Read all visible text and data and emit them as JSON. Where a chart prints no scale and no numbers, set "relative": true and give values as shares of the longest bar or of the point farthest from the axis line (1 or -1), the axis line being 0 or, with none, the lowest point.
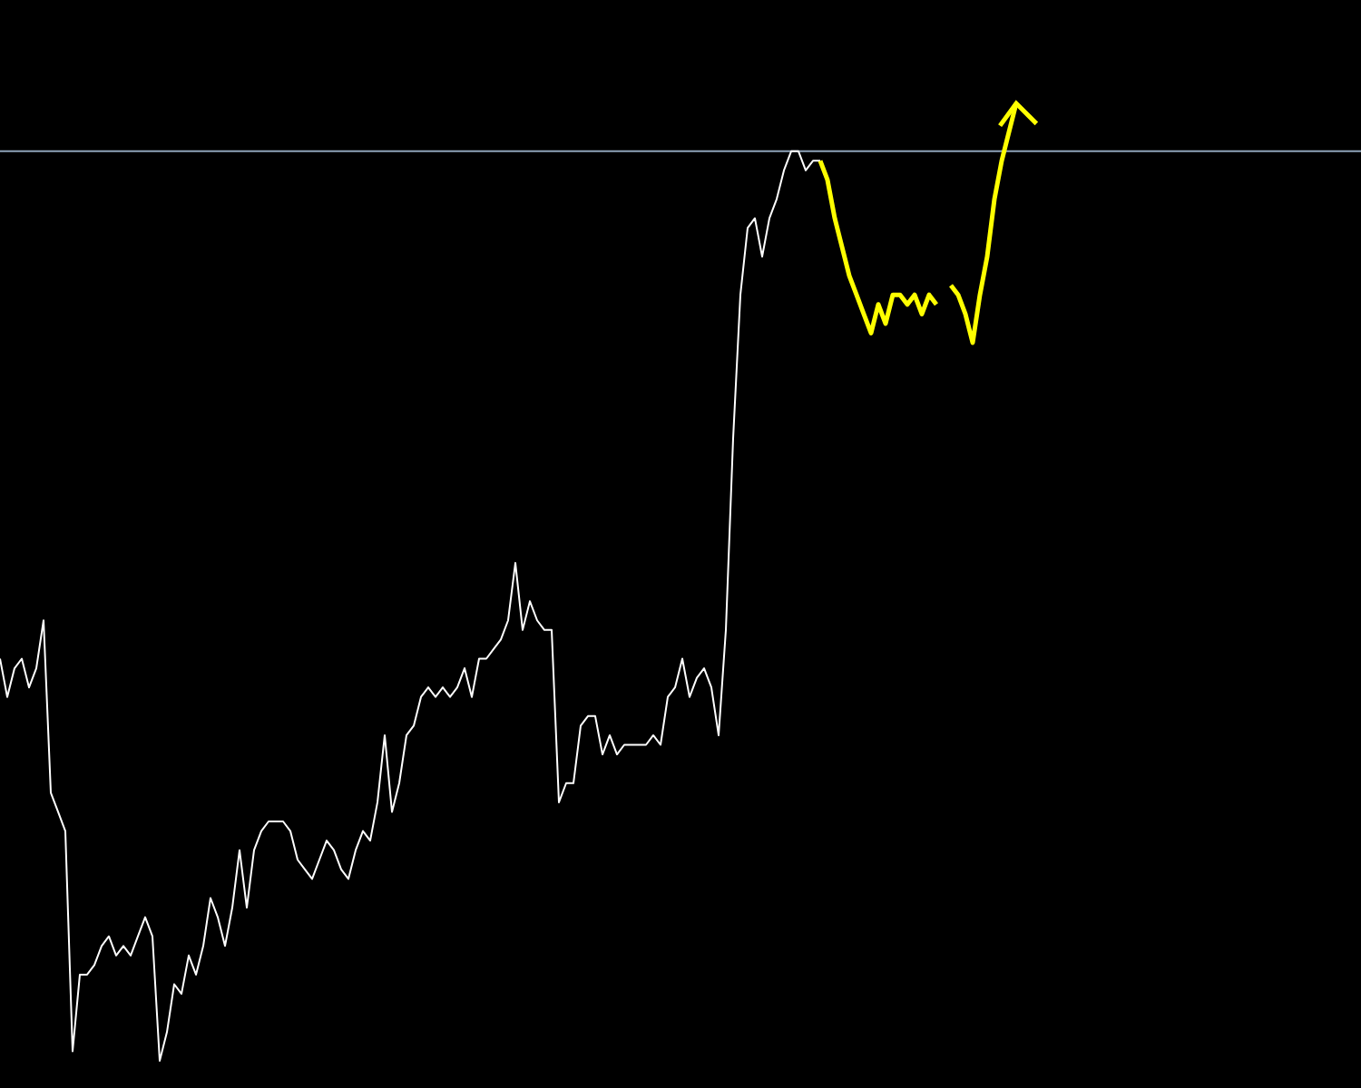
{
  "chart_data": {
    "type": "line",
    "relative": true,
    "categories": [
      null,
      null,
      null,
      null,
      null,
      null,
      null,
      null,
      null,
      null,
      null,
      null,
      null,
      null,
      null,
      null,
      null,
      null,
      null,
      null,
      null,
      null,
      null,
      null,
      null,
      null,
      null,
      null,
      null,
      null,
      null,
      null,
      null,
      null,
      null,
      null,
      null,
      null,
      null,
      null,
      null,
      null,
      null,
      null,
      null,
      null,
      null,
      null,
      null,
      null,
      null,
      null,
      null,
      null,
      null,
      null,
      null,
      null,
      null,
      null,
      null,
      null,
      null,
      null,
      null,
      null,
      null,
      null,
      null,
      null,
      null,
      null,
      null,
      null,
      null,
      null,
      null,
      null,
      null,
      null,
      null,
      null,
      null,
      null,
      null,
      null,
      null,
      null,
      null,
      null,
      null,
      null,
      null,
      null,
      null,
      null,
      null,
      null,
      null,
      null,
      null,
      null,
      null,
      null,
      null,
      null,
      null,
      null,
      null,
      null,
      null,
      null,
      null,
      null,
      null,
      null,
      null,
      null,
      null,
      null,
      null,
      null,
      null,
      null,
      null,
      null,
      null,
      null,
      null,
      null,
      null,
      null,
      null,
      null,
      null,
      null,
      null,
      null,
      null,
      null,
      null
    ],
    "series": [
      {
        "color": "#ffffff",
        "values": [
          0.42,
          0.38,
          0.41,
          0.42,
          0.39,
          0.41,
          0.46,
          0.28,
          0.26,
          0.24,
          0.01,
          0.09,
          0.09,
          0.1,
          0.12,
          0.13,
          0.11,
          0.12,
          0.11,
          0.13,
          0.15,
          0.13,
          0.0,
          0.03,
          0.08,
          0.07,
          0.11,
          0.09,
          0.12,
          0.17,
          0.15,
          0.12,
          0.16,
          0.22,
          0.16,
          0.22,
          0.24,
          0.25,
          0.25,
          0.25,
          0.24,
          0.21,
          0.2,
          0.19,
          0.21,
          0.23,
          0.22,
          0.2,
          0.19,
          0.22,
          0.24,
          0.23,
          0.27,
          0.34,
          0.26,
          0.29,
          0.34,
          0.35,
          0.38,
          0.39,
          0.38,
          0.39,
          0.38,
          0.39,
          0.41,
          0.38,
          0.42,
          0.42,
          0.43,
          0.44,
          0.46,
          0.52,
          0.45,
          0.48,
          0.46,
          0.45,
          0.45,
          0.27,
          0.29,
          0.29,
          0.35,
          0.36,
          0.36,
          0.32,
          0.34,
          0.32,
          0.33,
          0.33,
          0.33,
          0.33,
          0.34,
          0.33,
          0.38,
          0.39,
          0.42,
          0.38,
          0.4,
          0.41,
          0.39,
          0.34,
          0.45,
          0.65,
          0.8,
          0.87,
          0.88,
          0.84,
          0.88,
          0.9,
          0.93,
          0.95,
          0.95,
          0.93,
          0.94,
          0.94,
          null,
          null,
          null,
          null,
          null,
          null,
          null,
          null,
          null,
          null,
          null,
          null,
          null,
          null,
          null,
          null,
          null,
          null,
          null,
          null,
          null,
          null,
          null,
          null,
          null,
          null,
          null
        ]
      },
      {
        "color": "#ffff00",
        "values": [
          null,
          null,
          null,
          null,
          null,
          null,
          null,
          null,
          null,
          null,
          null,
          null,
          null,
          null,
          null,
          null,
          null,
          null,
          null,
          null,
          null,
          null,
          null,
          null,
          null,
          null,
          null,
          null,
          null,
          null,
          null,
          null,
          null,
          null,
          null,
          null,
          null,
          null,
          null,
          null,
          null,
          null,
          null,
          null,
          null,
          null,
          null,
          null,
          null,
          null,
          null,
          null,
          null,
          null,
          null,
          null,
          null,
          null,
          null,
          null,
          null,
          null,
          null,
          null,
          null,
          null,
          null,
          null,
          null,
          null,
          null,
          null,
          null,
          null,
          null,
          null,
          null,
          null,
          null,
          null,
          null,
          null,
          null,
          null,
          null,
          null,
          null,
          null,
          null,
          null,
          null,
          null,
          null,
          null,
          null,
          null,
          null,
          null,
          null,
          null,
          null,
          null,
          null,
          null,
          null,
          null,
          null,
          null,
          null,
          null,
          null,
          null,
          null,
          0.94,
          0.92,
          0.88,
          0.85,
          0.82,
          0.8,
          0.78,
          0.76,
          0.79,
          0.77,
          0.8,
          0.8,
          0.79,
          0.8,
          0.78,
          0.8,
          0.79,
          null,
          0.81,
          0.8,
          0.78,
          0.75,
          0.8,
          0.84,
          0.9,
          0.94,
          0.97,
          1.0
        ]
      }
    ],
    "ref_lines": [
      {
        "axis": "y",
        "value": 0.95,
        "color": "#8ea3b8"
      }
    ]
  }
}
